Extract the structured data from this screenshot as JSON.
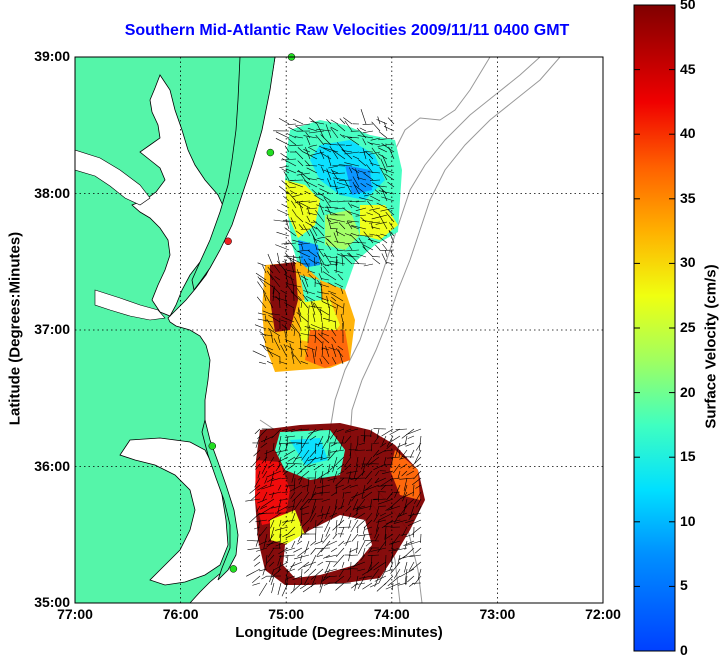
{
  "title": "Southern Mid-Atlantic Raw Velocities 2009/11/11 0400 GMT",
  "xlabel": "Longitude (Degrees:Minutes)",
  "ylabel": "Latitude (Degrees:Minutes)",
  "colorbar": {
    "label": "Surface Velocity (cm/s)",
    "min": 0,
    "max": 50,
    "ticks": [
      "0",
      "5",
      "10",
      "15",
      "20",
      "25",
      "30",
      "35",
      "40",
      "45",
      "50"
    ]
  },
  "xticks": [
    "77:00",
    "76:00",
    "75:00",
    "74:00",
    "73:00",
    "72:00"
  ],
  "yticks": [
    "39:00",
    "38:00",
    "37:00",
    "36:00",
    "35:00"
  ],
  "colors": {
    "land": "#55f5a9",
    "title": "#0000ff",
    "bathymetry": "#999999",
    "station_active": "#22dd22",
    "station_inactive": "#ee2222"
  },
  "grid": "dotted",
  "stations": [
    {
      "lon": -74.95,
      "lat": 39.0,
      "status": "active"
    },
    {
      "lon": -75.15,
      "lat": 38.3,
      "status": "active"
    },
    {
      "lon": -75.55,
      "lat": 37.65,
      "status": "inactive"
    },
    {
      "lon": -75.7,
      "lat": 36.15,
      "status": "active"
    },
    {
      "lon": -75.5,
      "lat": 35.25,
      "status": "active"
    }
  ]
}
